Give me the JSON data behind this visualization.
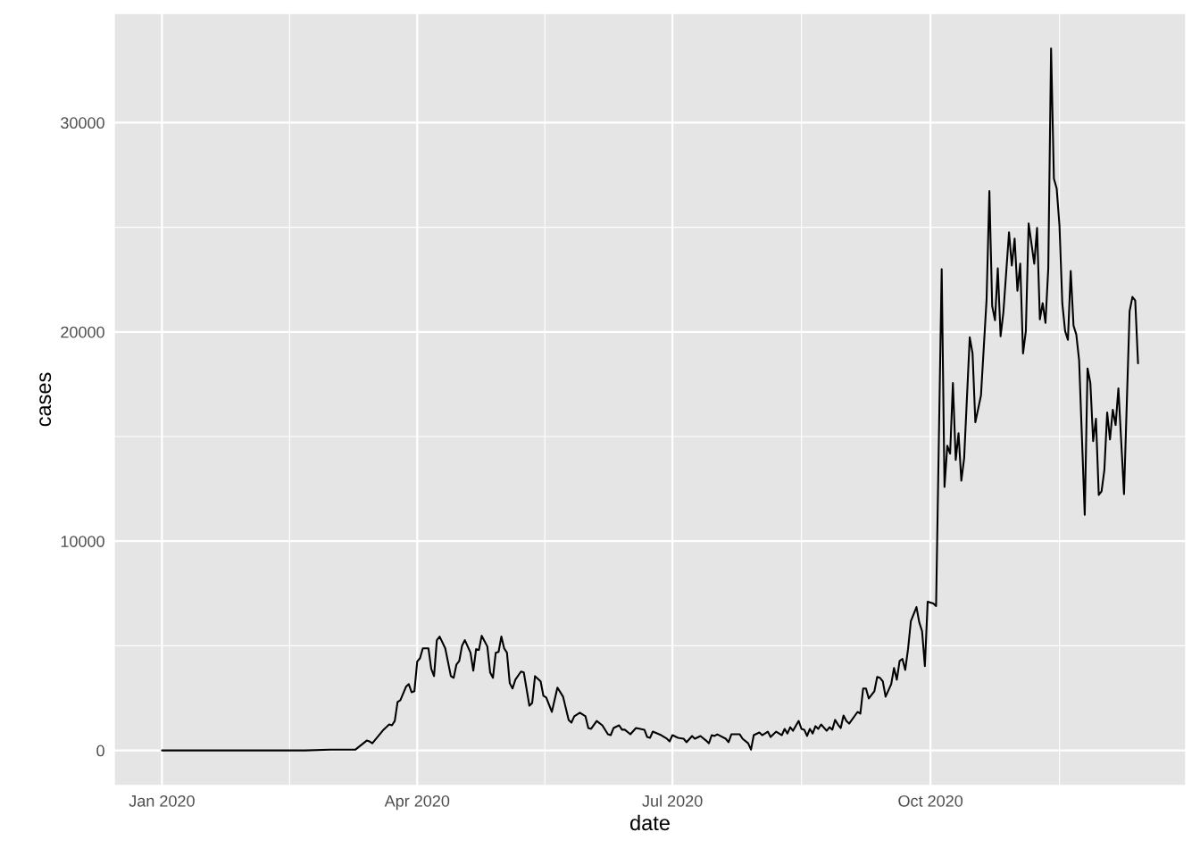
{
  "chart_data": {
    "type": "line",
    "xlabel": "date",
    "ylabel": "cases",
    "x": [
      "2020-01-01",
      "2020-02-21",
      "2020-03-01",
      "2020-03-10",
      "2020-03-14",
      "2020-03-15",
      "2020-03-16",
      "2020-03-20",
      "2020-03-22",
      "2020-03-23",
      "2020-03-24",
      "2020-03-25",
      "2020-03-26",
      "2020-03-28",
      "2020-03-29",
      "2020-03-30",
      "2020-03-31",
      "2020-04-01",
      "2020-04-02",
      "2020-04-03",
      "2020-04-05",
      "2020-04-06",
      "2020-04-07",
      "2020-04-08",
      "2020-04-09",
      "2020-04-11",
      "2020-04-13",
      "2020-04-14",
      "2020-04-15",
      "2020-04-16",
      "2020-04-17",
      "2020-04-18",
      "2020-04-20",
      "2020-04-21",
      "2020-04-22",
      "2020-04-23",
      "2020-04-24",
      "2020-04-26",
      "2020-04-27",
      "2020-04-28",
      "2020-04-29",
      "2020-04-30",
      "2020-05-01",
      "2020-05-02",
      "2020-05-03",
      "2020-05-04",
      "2020-05-05",
      "2020-05-06",
      "2020-05-08",
      "2020-05-09",
      "2020-05-11",
      "2020-05-12",
      "2020-05-13",
      "2020-05-15",
      "2020-05-16",
      "2020-05-17",
      "2020-05-19",
      "2020-05-21",
      "2020-05-23",
      "2020-05-25",
      "2020-05-26",
      "2020-05-27",
      "2020-05-29",
      "2020-05-31",
      "2020-06-01",
      "2020-06-02",
      "2020-06-04",
      "2020-06-06",
      "2020-06-08",
      "2020-06-09",
      "2020-06-10",
      "2020-06-12",
      "2020-06-13",
      "2020-06-14",
      "2020-06-16",
      "2020-06-18",
      "2020-06-21",
      "2020-06-22",
      "2020-06-23",
      "2020-06-24",
      "2020-06-27",
      "2020-06-29",
      "2020-06-30",
      "2020-07-01",
      "2020-07-03",
      "2020-07-05",
      "2020-07-06",
      "2020-07-08",
      "2020-07-09",
      "2020-07-11",
      "2020-07-13",
      "2020-07-14",
      "2020-07-15",
      "2020-07-16",
      "2020-07-17",
      "2020-07-20",
      "2020-07-21",
      "2020-07-22",
      "2020-07-25",
      "2020-07-26",
      "2020-07-28",
      "2020-07-29",
      "2020-07-30",
      "2020-08-01",
      "2020-08-02",
      "2020-08-04",
      "2020-08-05",
      "2020-08-07",
      "2020-08-09",
      "2020-08-10",
      "2020-08-11",
      "2020-08-12",
      "2020-08-13",
      "2020-08-15",
      "2020-08-16",
      "2020-08-17",
      "2020-08-18",
      "2020-08-19",
      "2020-08-20",
      "2020-08-21",
      "2020-08-22",
      "2020-08-23",
      "2020-08-25",
      "2020-08-26",
      "2020-08-27",
      "2020-08-28",
      "2020-08-29",
      "2020-08-30",
      "2020-08-31",
      "2020-09-01",
      "2020-09-02",
      "2020-09-05",
      "2020-09-06",
      "2020-09-07",
      "2020-09-08",
      "2020-09-09",
      "2020-09-11",
      "2020-09-12",
      "2020-09-13",
      "2020-09-14",
      "2020-09-15",
      "2020-09-17",
      "2020-09-18",
      "2020-09-19",
      "2020-09-20",
      "2020-09-21",
      "2020-09-22",
      "2020-09-23",
      "2020-09-24",
      "2020-09-26",
      "2020-09-27",
      "2020-09-28",
      "2020-09-29",
      "2020-09-30",
      "2020-10-02",
      "2020-10-03",
      "2020-10-05",
      "2020-10-06",
      "2020-10-07",
      "2020-10-08",
      "2020-10-09",
      "2020-10-10",
      "2020-10-11",
      "2020-10-12",
      "2020-10-13",
      "2020-10-15",
      "2020-10-16",
      "2020-10-17",
      "2020-10-19",
      "2020-10-21",
      "2020-10-22",
      "2020-10-23",
      "2020-10-24",
      "2020-10-25",
      "2020-10-26",
      "2020-10-27",
      "2020-10-29",
      "2020-10-30",
      "2020-10-31",
      "2020-11-01",
      "2020-11-02",
      "2020-11-03",
      "2020-11-04",
      "2020-11-05",
      "2020-11-07",
      "2020-11-08",
      "2020-11-09",
      "2020-11-10",
      "2020-11-11",
      "2020-11-12",
      "2020-11-13",
      "2020-11-14",
      "2020-11-15",
      "2020-11-16",
      "2020-11-17",
      "2020-11-18",
      "2020-11-19",
      "2020-11-20",
      "2020-11-21",
      "2020-11-22",
      "2020-11-23",
      "2020-11-25",
      "2020-11-26",
      "2020-11-27",
      "2020-11-28",
      "2020-11-29",
      "2020-11-30",
      "2020-12-01",
      "2020-12-02",
      "2020-12-03",
      "2020-12-04",
      "2020-12-05",
      "2020-12-06",
      "2020-12-07",
      "2020-12-09",
      "2020-12-11",
      "2020-12-12",
      "2020-12-13",
      "2020-12-14"
    ],
    "series": [
      {
        "color": "#000000",
        "values": [
          0,
          0,
          40,
          40,
          470,
          430,
          340,
          990,
          1240,
          1200,
          1410,
          2310,
          2400,
          3040,
          3170,
          2780,
          2830,
          4240,
          4410,
          4880,
          4880,
          3900,
          3550,
          5270,
          5440,
          4880,
          3550,
          3470,
          4110,
          4280,
          5010,
          5270,
          4670,
          3810,
          4840,
          4800,
          5480,
          4970,
          3730,
          3470,
          4670,
          4710,
          5440,
          4880,
          4670,
          3210,
          2960,
          3380,
          3770,
          3730,
          2140,
          2270,
          3550,
          3300,
          2610,
          2530,
          1840,
          3000,
          2570,
          1460,
          1330,
          1630,
          1800,
          1630,
          1070,
          1030,
          1410,
          1200,
          770,
          730,
          1070,
          1200,
          990,
          990,
          770,
          1070,
          990,
          640,
          600,
          900,
          730,
          560,
          430,
          730,
          600,
          560,
          390,
          690,
          560,
          690,
          470,
          340,
          730,
          690,
          770,
          560,
          390,
          770,
          770,
          560,
          340,
          40,
          730,
          860,
          730,
          900,
          640,
          900,
          730,
          1030,
          810,
          1110,
          940,
          1410,
          1030,
          990,
          690,
          1030,
          810,
          1160,
          1030,
          1240,
          940,
          1110,
          990,
          1460,
          1240,
          1070,
          1670,
          1410,
          1280,
          1840,
          1760,
          2960,
          2960,
          2480,
          2830,
          3510,
          3470,
          3300,
          2570,
          3170,
          3940,
          3380,
          4280,
          4370,
          3850,
          4840,
          6170,
          6850,
          6120,
          5700,
          4030,
          7110,
          7020,
          6900,
          23000,
          12590,
          14560,
          14180,
          17560,
          13880,
          15160,
          12890,
          13960,
          19740,
          18970,
          15680,
          16960,
          21540,
          26730,
          21240,
          20560,
          23040,
          19790,
          20940,
          24760,
          23170,
          24460,
          21970,
          23260,
          18970,
          20040,
          25180,
          23260,
          24970,
          20600,
          21370,
          20430,
          23040,
          33540,
          27330,
          26850,
          25060,
          21370,
          20040,
          19620,
          22910,
          20300,
          19870,
          18630,
          11260,
          18250,
          17560,
          14780,
          15850,
          12210,
          12380,
          13410,
          16150,
          14860,
          16280,
          15550,
          17300,
          12250,
          20990,
          21670,
          21500,
          18500
        ]
      }
    ],
    "xlim": [
      "2019-12-15",
      "2020-12-31"
    ],
    "xticks": [
      {
        "value": "2020-01-01",
        "label": "Jan 2020"
      },
      {
        "value": "2020-04-01",
        "label": "Apr 2020"
      },
      {
        "value": "2020-07-01",
        "label": "Jul 2020"
      },
      {
        "value": "2020-10-01",
        "label": "Oct 2020"
      }
    ],
    "ylim": [
      -1680,
      35220
    ],
    "yticks": [
      0,
      10000,
      20000,
      30000
    ],
    "grid": true,
    "legend": false,
    "marker": "none",
    "line_style": "solid"
  }
}
